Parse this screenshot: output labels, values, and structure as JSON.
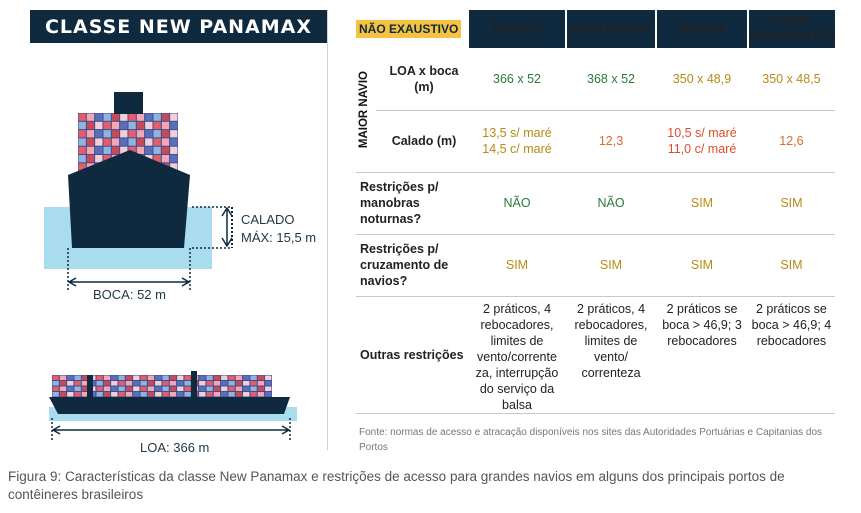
{
  "left": {
    "title": "CLASSE NEW PANAMAX",
    "calado_line1": "CALADO",
    "calado_line2": "MÁX: 15,5 m",
    "boca": "BOCA: 52 m",
    "loa": "LOA: 366 m"
  },
  "table": {
    "badge": "NÃO EXAUSTIVO",
    "ports": [
      "SANTOS",
      "PARANAGUÁ",
      "ITAPOÁ",
      "ITAJAÍ-\nNAVEGANTES"
    ],
    "group_label": "MAIOR NAVIO",
    "rows": [
      {
        "label": "LOA x boca (m)",
        "cells": [
          "366 x 52",
          "368 x 52",
          "350 x 48,9",
          "350 x 48,5"
        ]
      },
      {
        "label": "Calado (m)",
        "cells": [
          "13,5 s/ maré\n14,5 c/ maré",
          "12,3",
          "10,5 s/ maré\n11,0 c/ maré",
          "12,6"
        ]
      },
      {
        "label": "Restrições p/ manobras noturnas?",
        "cells": [
          "NÃO",
          "NÃO",
          "SIM",
          "SIM"
        ]
      },
      {
        "label": "Restrições p/ cruzamento de navios?",
        "cells": [
          "SIM",
          "SIM",
          "SIM",
          "SIM"
        ]
      },
      {
        "label": "Outras restrições",
        "cells": [
          "2 práticos, 4 rebocadores, limites de vento/corrente za, interrupção do serviço da balsa",
          "2 práticos, 4 rebocadores, limites de vento/ correnteza",
          "2 práticos se boca > 46,9; 3 rebocadores",
          "2 práticos se boca > 46,9; 4 rebocadores"
        ]
      }
    ],
    "colors": {
      "green": "#2a7a3b",
      "amber": "#b98a15",
      "orange": "#d66d2b",
      "red": "#e04b2b",
      "navy": "#0f2a3f",
      "badge": "#f5c242"
    }
  },
  "source": "Fonte: normas de acesso e atracação disponíveis nos sites das Autoridades Portuárias e Capitanias dos Portos",
  "caption": "Figura 9: Características da classe New Panamax e restrições de acesso para grandes navios em alguns dos principais portos de contêineres brasileiros"
}
